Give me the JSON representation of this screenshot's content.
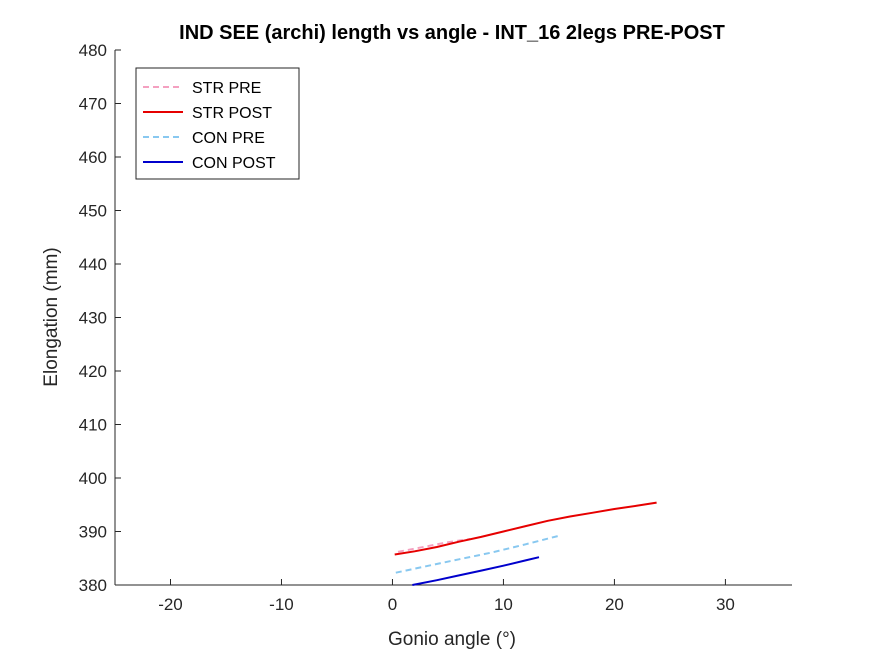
{
  "chart_data": {
    "type": "line",
    "title": "IND SEE (archi) length vs angle - INT_16 2legs PRE-POST",
    "xlabel": "Gonio angle (°)",
    "ylabel": "Elongation (mm)",
    "xlim": [
      -25,
      36
    ],
    "ylim": [
      380,
      480
    ],
    "xticks": [
      -20,
      -10,
      0,
      10,
      20,
      30
    ],
    "yticks": [
      380,
      390,
      400,
      410,
      420,
      430,
      440,
      450,
      460,
      470,
      480
    ],
    "grid": false,
    "legend_position": "top-left",
    "series": [
      {
        "name": "STR PRE",
        "color": "#f4a0c0",
        "dash": true,
        "x": [
          0.5,
          3,
          5,
          7
        ],
        "y": [
          386.2,
          387.2,
          388.0,
          388.6
        ]
      },
      {
        "name": "STR POST",
        "color": "#e60000",
        "dash": false,
        "x": [
          0.2,
          2,
          4,
          6,
          8,
          10,
          12,
          14,
          16,
          18,
          20,
          22,
          23.8
        ],
        "y": [
          385.7,
          386.3,
          387.1,
          388.1,
          389.0,
          390.0,
          391.0,
          392.0,
          392.8,
          393.5,
          394.2,
          394.8,
          395.4
        ]
      },
      {
        "name": "CON PRE",
        "color": "#88c8f0",
        "dash": true,
        "x": [
          0.3,
          3,
          6,
          9,
          12,
          15
        ],
        "y": [
          382.3,
          383.5,
          384.8,
          386.1,
          387.6,
          389.2
        ]
      },
      {
        "name": "CON POST",
        "color": "#0000cc",
        "dash": false,
        "x": [
          1.8,
          4,
          6,
          8,
          10,
          12,
          13.2
        ],
        "y": [
          380.0,
          380.9,
          381.8,
          382.7,
          383.6,
          384.6,
          385.2
        ]
      }
    ]
  }
}
